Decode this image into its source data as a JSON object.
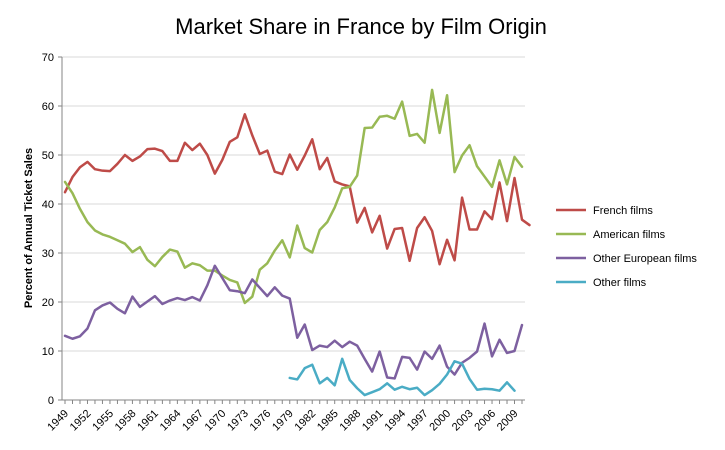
{
  "chart_data": {
    "type": "line",
    "title": "Market Share in France by Film Origin",
    "xlabel": "",
    "ylabel": "Percent of Annual Ticket Sales",
    "ylim": [
      0,
      70
    ],
    "yticks": [
      0,
      10,
      20,
      30,
      40,
      50,
      60,
      70
    ],
    "xlim": [
      1949,
      2010
    ],
    "xticks": [
      1949,
      1952,
      1955,
      1958,
      1961,
      1964,
      1967,
      1970,
      1973,
      1976,
      1979,
      1982,
      1985,
      1988,
      1991,
      1994,
      1997,
      2000,
      2003,
      2006,
      2009
    ],
    "grid": "horizontal",
    "legend_position": "right",
    "series": [
      {
        "name": "French films",
        "color": "#be4b48",
        "x_start": 1949,
        "values": [
          42.4,
          45.5,
          47.5,
          48.6,
          47.1,
          46.8,
          46.7,
          48.2,
          50.0,
          48.8,
          49.7,
          51.2,
          51.3,
          50.8,
          48.8,
          48.8,
          52.5,
          51.0,
          52.3,
          50.0,
          46.2,
          49.0,
          52.7,
          53.6,
          58.3,
          54.0,
          50.2,
          50.9,
          46.6,
          46.1,
          50.1,
          47.0,
          49.9,
          53.2,
          47.1,
          49.4,
          44.6,
          44.0,
          43.6,
          36.2,
          39.2,
          34.2,
          37.6,
          30.9,
          34.9,
          35.1,
          28.4,
          35.1,
          37.3,
          34.5,
          27.7,
          32.7,
          28.5,
          41.3,
          34.8,
          34.8,
          38.5,
          36.9,
          44.4,
          36.5,
          45.3,
          36.8,
          35.7
        ]
      },
      {
        "name": "American films",
        "color": "#98b954",
        "x_start": 1949,
        "values": [
          44.5,
          42.2,
          39.0,
          36.3,
          34.6,
          33.8,
          33.3,
          32.6,
          31.9,
          30.2,
          31.2,
          28.6,
          27.3,
          29.2,
          30.7,
          30.3,
          27.0,
          27.9,
          27.5,
          26.4,
          26.4,
          25.4,
          24.5,
          24.0,
          19.8,
          21.1,
          26.6,
          27.9,
          30.5,
          32.6,
          29.1,
          35.6,
          31.0,
          30.1,
          34.7,
          36.3,
          39.3,
          43.2,
          43.5,
          45.8,
          55.5,
          55.6,
          57.8,
          58.0,
          57.4,
          60.9,
          53.9,
          54.3,
          52.5,
          63.3,
          54.5,
          62.2,
          46.5,
          49.9,
          52.0,
          47.7,
          45.6,
          43.5,
          48.9,
          44.0,
          49.6,
          47.6
        ]
      },
      {
        "name": "Other European films",
        "color": "#7d60a0",
        "x_start": 1949,
        "values": [
          13.1,
          12.5,
          13.0,
          14.6,
          18.3,
          19.3,
          19.9,
          18.6,
          17.7,
          21.1,
          19.0,
          20.1,
          21.2,
          19.6,
          20.3,
          20.8,
          20.4,
          21.0,
          20.3,
          23.4,
          27.4,
          24.9,
          22.4,
          22.2,
          21.8,
          24.6,
          22.9,
          21.2,
          23.0,
          21.3,
          20.7,
          12.7,
          15.4,
          10.2,
          11.1,
          10.8,
          12.1,
          10.8,
          11.9,
          11.1,
          8.4,
          5.8,
          9.9,
          4.6,
          4.4,
          8.8,
          8.6,
          6.2,
          9.9,
          8.4,
          11.1,
          6.8,
          5.2,
          7.6,
          8.6,
          9.9,
          15.6,
          8.9,
          12.3,
          9.6,
          10.0,
          15.3
        ]
      },
      {
        "name": "Other films",
        "color": "#4aacc5",
        "x_start": 1979,
        "values": [
          4.5,
          4.2,
          6.5,
          7.2,
          3.4,
          4.5,
          3.0,
          8.4,
          4.1,
          2.4,
          1.0,
          1.6,
          2.2,
          3.4,
          2.1,
          2.7,
          2.2,
          2.5,
          1.0,
          2.0,
          3.3,
          5.2,
          7.9,
          7.4,
          4.3,
          2.1,
          2.3,
          2.2,
          1.9,
          3.6,
          1.9
        ]
      }
    ]
  }
}
